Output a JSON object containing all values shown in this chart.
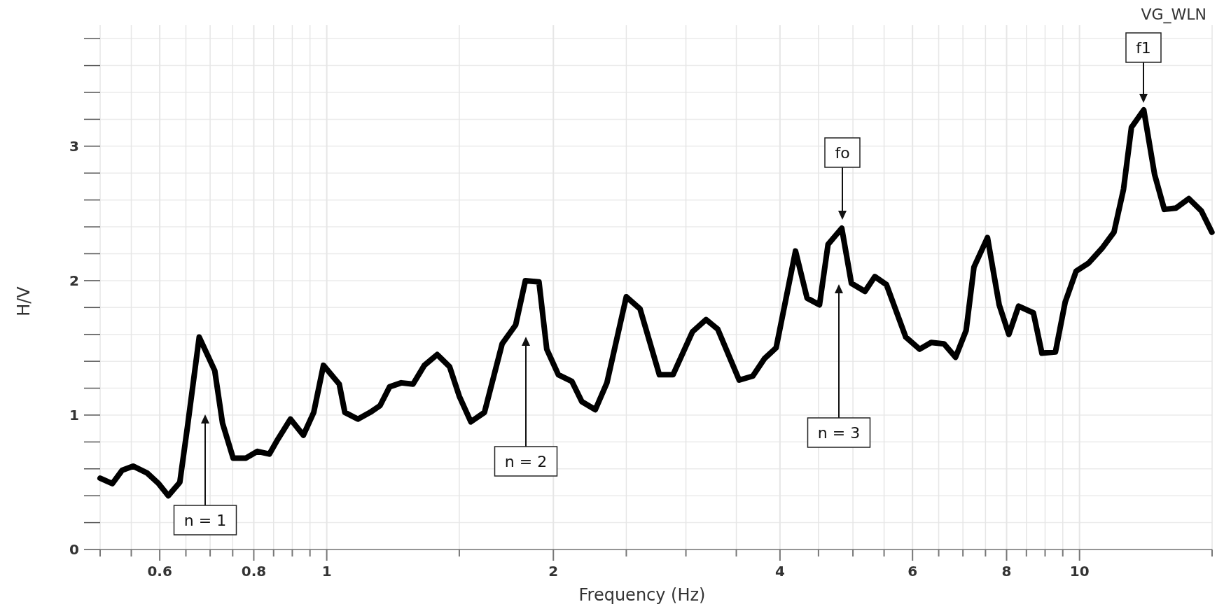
{
  "chart_data": {
    "type": "line",
    "title": "VG_WLN",
    "xlabel": "Frequency (Hz)",
    "ylabel": "H/V",
    "log": "x",
    "grid": true,
    "xlim": [
      0.5,
      15
    ],
    "ylim": [
      0,
      3.9
    ],
    "xticks": [
      {
        "value": 0.5,
        "label": null
      },
      {
        "value": 0.55,
        "label": null
      },
      0.6,
      {
        "value": 0.65,
        "label": null
      },
      {
        "value": 0.7,
        "label": null
      },
      {
        "value": 0.75,
        "label": null
      },
      0.8,
      {
        "value": 0.85,
        "label": null
      },
      {
        "value": 0.9,
        "label": null
      },
      {
        "value": 0.95,
        "label": null
      },
      1,
      {
        "value": 1.5,
        "label": null
      },
      2,
      {
        "value": 2.5,
        "label": null
      },
      {
        "value": 3,
        "label": null
      },
      {
        "value": 3.5,
        "label": null
      },
      4,
      {
        "value": 4.5,
        "label": null
      },
      {
        "value": 5,
        "label": null
      },
      {
        "value": 5.5,
        "label": null
      },
      6,
      {
        "value": 6.5,
        "label": null
      },
      {
        "value": 7,
        "label": null
      },
      {
        "value": 7.5,
        "label": null
      },
      8,
      {
        "value": 8.5,
        "label": null
      },
      {
        "value": 9,
        "label": null
      },
      {
        "value": 9.5,
        "label": null
      },
      10,
      {
        "value": 15,
        "label": null
      }
    ],
    "yticks": [
      0,
      {
        "value": 0.2,
        "label": null
      },
      {
        "value": 0.4,
        "label": null
      },
      {
        "value": 0.6,
        "label": null
      },
      {
        "value": 0.8,
        "label": null
      },
      1,
      {
        "value": 1.2,
        "label": null
      },
      {
        "value": 1.4,
        "label": null
      },
      {
        "value": 1.6,
        "label": null
      },
      {
        "value": 1.8,
        "label": null
      },
      2,
      {
        "value": 2.2,
        "label": null
      },
      {
        "value": 2.4,
        "label": null
      },
      {
        "value": 2.6,
        "label": null
      },
      {
        "value": 2.8,
        "label": null
      },
      3,
      {
        "value": 3.2,
        "label": null
      },
      {
        "value": 3.4,
        "label": null
      },
      {
        "value": 3.6,
        "label": null
      },
      {
        "value": 3.8,
        "label": null
      }
    ],
    "series": [
      {
        "color": "#000000",
        "x": [
          0.5,
          0.519,
          0.535,
          0.553,
          0.577,
          0.598,
          0.616,
          0.638,
          0.653,
          0.677,
          0.71,
          0.727,
          0.751,
          0.781,
          0.809,
          0.839,
          0.861,
          0.895,
          0.931,
          0.961,
          0.99,
          1.039,
          1.057,
          1.1,
          1.142,
          1.177,
          1.212,
          1.256,
          1.302,
          1.348,
          1.402,
          1.456,
          1.5,
          1.554,
          1.62,
          1.71,
          1.782,
          1.836,
          1.914,
          1.96,
          2.031,
          2.117,
          2.182,
          2.274,
          2.356,
          2.5,
          2.607,
          2.766,
          2.884,
          3.061,
          3.191,
          3.306,
          3.531,
          3.681,
          3.815,
          3.953,
          4.195,
          4.346,
          4.514,
          4.634,
          4.832,
          4.977,
          5.188,
          5.346,
          5.54,
          5.877,
          6.13,
          6.352,
          6.606,
          6.844,
          7.069,
          7.24,
          7.546,
          7.821,
          8.056,
          8.299,
          8.684,
          8.913,
          9.29,
          9.57,
          9.896,
          10.28,
          10.71,
          11.11,
          11.44,
          11.72,
          12.17,
          12.58,
          12.96,
          13.43,
          13.97,
          14.51,
          14.99
        ],
        "values": [
          0.53,
          0.49,
          0.59,
          0.62,
          0.57,
          0.49,
          0.4,
          0.5,
          0.91,
          1.58,
          1.33,
          0.94,
          0.68,
          0.68,
          0.73,
          0.71,
          0.82,
          0.97,
          0.85,
          1.02,
          1.37,
          1.23,
          1.02,
          0.97,
          1.02,
          1.07,
          1.21,
          1.24,
          1.23,
          1.37,
          1.45,
          1.36,
          1.14,
          0.95,
          1.02,
          1.53,
          1.67,
          2.0,
          1.99,
          1.49,
          1.3,
          1.25,
          1.1,
          1.04,
          1.24,
          1.88,
          1.79,
          1.3,
          1.3,
          1.62,
          1.71,
          1.64,
          1.26,
          1.29,
          1.42,
          1.5,
          2.22,
          1.87,
          1.82,
          2.27,
          2.39,
          1.98,
          1.92,
          2.03,
          1.97,
          1.58,
          1.49,
          1.54,
          1.53,
          1.43,
          1.63,
          2.1,
          2.32,
          1.82,
          1.6,
          1.81,
          1.76,
          1.46,
          1.47,
          1.84,
          2.07,
          2.13,
          2.24,
          2.36,
          2.68,
          3.14,
          3.27,
          2.79,
          2.53,
          2.54,
          2.61,
          2.52,
          2.36
        ]
      }
    ],
    "annotations": [
      "n = 1",
      "n = 2",
      "n = 3",
      "fo",
      "f1"
    ]
  }
}
